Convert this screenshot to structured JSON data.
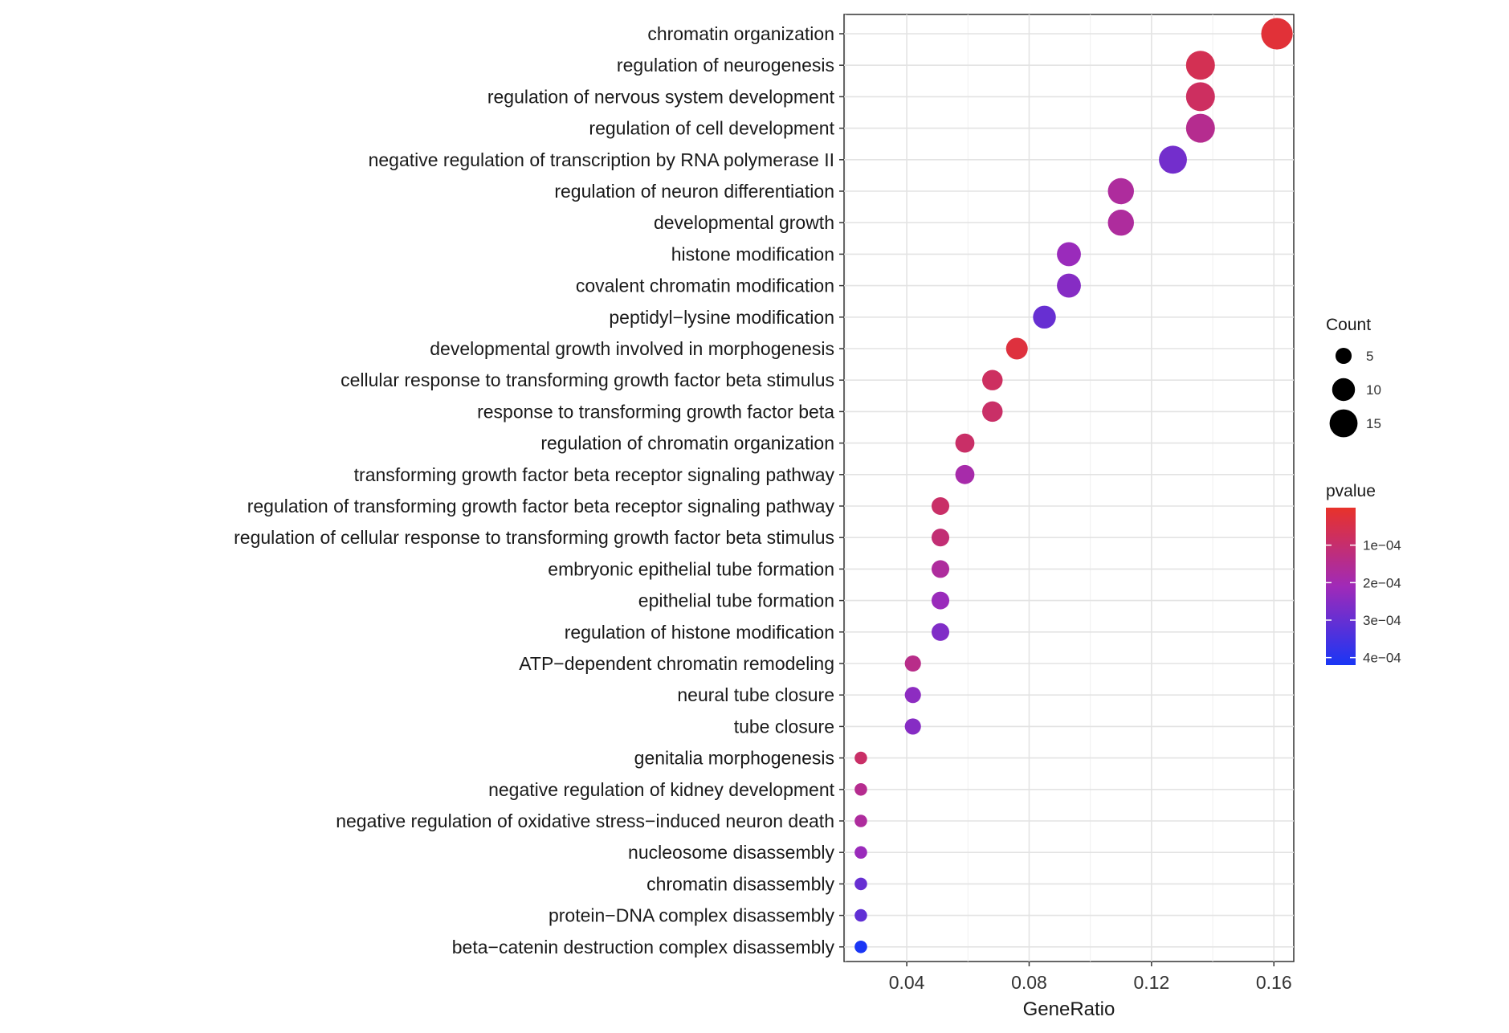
{
  "chart_data": {
    "type": "scatter",
    "xlabel": "GeneRatio",
    "xlim": [
      0.0195,
      0.1665
    ],
    "x_ticks": [
      {
        "value": 0.04,
        "label": "0.04"
      },
      {
        "value": 0.08,
        "label": "0.08"
      },
      {
        "value": 0.12,
        "label": "0.12"
      },
      {
        "value": 0.16,
        "label": "0.16"
      }
    ],
    "grid": true,
    "size_legend": {
      "title": "Count",
      "entries": [
        {
          "value": 5,
          "label": "5"
        },
        {
          "value": 10,
          "label": "10"
        },
        {
          "value": 15,
          "label": "15"
        }
      ]
    },
    "color_legend": {
      "title": "pvalue",
      "range": [
        0.0,
        0.00042
      ],
      "low_color": "#e8322a",
      "mid_color": "#a02ab8",
      "high_color": "#1a36f5",
      "ticks": [
        {
          "value": 0.0001,
          "label": "1e−04"
        },
        {
          "value": 0.0002,
          "label": "2e−04"
        },
        {
          "value": 0.0003,
          "label": "3e−04"
        },
        {
          "value": 0.0004,
          "label": "4e−04"
        }
      ]
    },
    "terms": [
      {
        "label": "chromatin organization",
        "gene_ratio": 0.161,
        "count": 19,
        "pvalue": 2e-05
      },
      {
        "label": "regulation of neurogenesis",
        "gene_ratio": 0.136,
        "count": 16,
        "pvalue": 6e-05
      },
      {
        "label": "regulation of nervous system development",
        "gene_ratio": 0.136,
        "count": 16,
        "pvalue": 8e-05
      },
      {
        "label": "regulation of cell development",
        "gene_ratio": 0.136,
        "count": 16,
        "pvalue": 0.00015
      },
      {
        "label": "negative regulation of transcription by RNA polymerase II",
        "gene_ratio": 0.127,
        "count": 15,
        "pvalue": 0.00028
      },
      {
        "label": "regulation of neuron differentiation",
        "gene_ratio": 0.11,
        "count": 13,
        "pvalue": 0.00017
      },
      {
        "label": "developmental growth",
        "gene_ratio": 0.11,
        "count": 13,
        "pvalue": 0.00017
      },
      {
        "label": "histone modification",
        "gene_ratio": 0.093,
        "count": 11,
        "pvalue": 0.00022
      },
      {
        "label": "covalent chromatin modification",
        "gene_ratio": 0.093,
        "count": 11,
        "pvalue": 0.00025
      },
      {
        "label": "peptidyl−lysine modification",
        "gene_ratio": 0.085,
        "count": 10,
        "pvalue": 0.0003
      },
      {
        "label": "developmental growth involved in morphogenesis",
        "gene_ratio": 0.076,
        "count": 9,
        "pvalue": 3e-05
      },
      {
        "label": "cellular response to transforming growth factor beta stimulus",
        "gene_ratio": 0.068,
        "count": 8,
        "pvalue": 8e-05
      },
      {
        "label": "response to transforming growth factor beta",
        "gene_ratio": 0.068,
        "count": 8,
        "pvalue": 9e-05
      },
      {
        "label": "regulation of chromatin organization",
        "gene_ratio": 0.059,
        "count": 7,
        "pvalue": 9e-05
      },
      {
        "label": "transforming growth factor beta receptor signaling pathway",
        "gene_ratio": 0.059,
        "count": 7,
        "pvalue": 0.00019
      },
      {
        "label": "regulation of transforming growth factor beta receptor signaling pathway",
        "gene_ratio": 0.051,
        "count": 6,
        "pvalue": 9e-05
      },
      {
        "label": "regulation of cellular response to transforming growth factor beta stimulus",
        "gene_ratio": 0.051,
        "count": 6,
        "pvalue": 0.00011
      },
      {
        "label": "embryonic epithelial tube formation",
        "gene_ratio": 0.051,
        "count": 6,
        "pvalue": 0.00017
      },
      {
        "label": "epithelial tube formation",
        "gene_ratio": 0.051,
        "count": 6,
        "pvalue": 0.00022
      },
      {
        "label": "regulation of histone modification",
        "gene_ratio": 0.051,
        "count": 6,
        "pvalue": 0.00026
      },
      {
        "label": "ATP−dependent chromatin remodeling",
        "gene_ratio": 0.042,
        "count": 5,
        "pvalue": 0.00014
      },
      {
        "label": "neural tube closure",
        "gene_ratio": 0.042,
        "count": 5,
        "pvalue": 0.00024
      },
      {
        "label": "tube closure",
        "gene_ratio": 0.042,
        "count": 5,
        "pvalue": 0.00025
      },
      {
        "label": "genitalia morphogenesis",
        "gene_ratio": 0.025,
        "count": 3,
        "pvalue": 9e-05
      },
      {
        "label": "negative regulation of kidney development",
        "gene_ratio": 0.025,
        "count": 3,
        "pvalue": 0.00015
      },
      {
        "label": "negative regulation of oxidative stress−induced neuron death",
        "gene_ratio": 0.025,
        "count": 3,
        "pvalue": 0.00017
      },
      {
        "label": "nucleosome disassembly",
        "gene_ratio": 0.025,
        "count": 3,
        "pvalue": 0.00022
      },
      {
        "label": "chromatin disassembly",
        "gene_ratio": 0.025,
        "count": 3,
        "pvalue": 0.0003
      },
      {
        "label": "protein−DNA complex disassembly",
        "gene_ratio": 0.025,
        "count": 3,
        "pvalue": 0.00031
      },
      {
        "label": "beta−catenin destruction complex disassembly",
        "gene_ratio": 0.025,
        "count": 3,
        "pvalue": 0.00042
      }
    ]
  }
}
